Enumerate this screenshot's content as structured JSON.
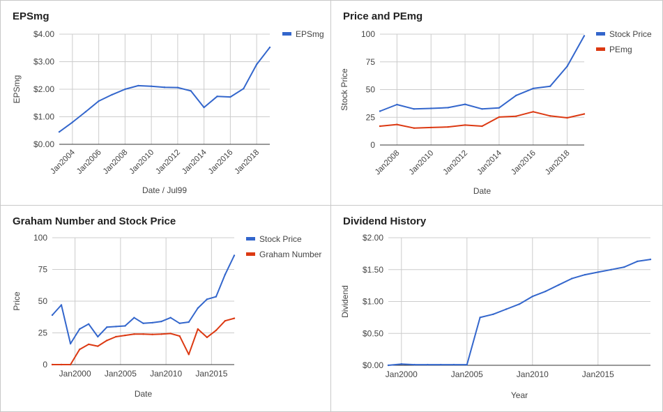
{
  "colors": {
    "blue": "#3366cc",
    "red": "#dc3912",
    "grid": "#cccccc",
    "axis": "#333333",
    "text": "#444444"
  },
  "chart_data": [
    {
      "id": "epsmg",
      "type": "line",
      "title": "EPSmg",
      "xlabel": "Date / Jul99",
      "ylabel": "EPSmg",
      "x_ticks": [
        "Jan2004",
        "Jan2006",
        "Jan2008",
        "Jan2010",
        "Jan2012",
        "Jan2014",
        "Jan2016",
        "Jan2018"
      ],
      "y_ticks": [
        "$0.00",
        "$1.00",
        "$2.00",
        "$3.00",
        "$4.00"
      ],
      "ylim": [
        0,
        4
      ],
      "grid": true,
      "legend": "right",
      "series": [
        {
          "name": "EPSmg",
          "color": "#3366cc",
          "x": [
            2003,
            2004,
            2005,
            2006,
            2007,
            2008,
            2009,
            2010,
            2011,
            2012,
            2013,
            2014,
            2015,
            2016,
            2017,
            2018,
            2019
          ],
          "y": [
            0.45,
            0.8,
            1.18,
            1.57,
            1.8,
            2.0,
            2.13,
            2.11,
            2.07,
            2.06,
            1.94,
            1.34,
            1.74,
            1.72,
            2.02,
            2.9,
            3.52
          ]
        }
      ]
    },
    {
      "id": "price-pemg",
      "type": "line",
      "title": "Price and PEmg",
      "xlabel": "Date",
      "ylabel": "Stock Price",
      "x_ticks": [
        "Jan2008",
        "Jan2010",
        "Jan2012",
        "Jan2014",
        "Jan2016",
        "Jan2018"
      ],
      "y_ticks": [
        "0",
        "25",
        "50",
        "75",
        "100"
      ],
      "ylim": [
        0,
        100
      ],
      "grid": true,
      "legend": "right",
      "series": [
        {
          "name": "Stock Price",
          "color": "#3366cc",
          "x": [
            2007,
            2008,
            2009,
            2010,
            2011,
            2012,
            2013,
            2014,
            2015,
            2016,
            2017,
            2018,
            2019
          ],
          "y": [
            30.5,
            36.5,
            32.5,
            33.0,
            33.7,
            36.7,
            32.5,
            33.5,
            44.7,
            51.0,
            53.0,
            71.0,
            98.5
          ]
        },
        {
          "name": "PEmg",
          "color": "#dc3912",
          "x": [
            2007,
            2008,
            2009,
            2010,
            2011,
            2012,
            2013,
            2014,
            2015,
            2016,
            2017,
            2018,
            2019
          ],
          "y": [
            17.0,
            18.5,
            15.3,
            15.8,
            16.3,
            18.0,
            17.0,
            25.2,
            26.0,
            30.0,
            26.2,
            24.5,
            28.0
          ]
        }
      ]
    },
    {
      "id": "graham",
      "type": "line",
      "title": "Graham Number and Stock Price",
      "xlabel": "Date",
      "ylabel": "Price",
      "x_ticks": [
        "Jan2000",
        "Jan2005",
        "Jan2010",
        "Jan2015"
      ],
      "y_ticks": [
        "0",
        "25",
        "50",
        "75",
        "100"
      ],
      "ylim": [
        0,
        100
      ],
      "grid": true,
      "legend": "right",
      "series": [
        {
          "name": "Stock Price",
          "color": "#3366cc",
          "x": [
            1997.5,
            1998.5,
            1999.5,
            2000.5,
            2001.5,
            2002.5,
            2003.5,
            2004.5,
            2005.5,
            2006.5,
            2007.5,
            2008.5,
            2009.5,
            2010.5,
            2011.5,
            2012.5,
            2013.5,
            2014.5,
            2015.5,
            2016.5,
            2017.5
          ],
          "y": [
            39.0,
            47.0,
            16.5,
            28.0,
            32.0,
            22.0,
            29.5,
            30.0,
            30.5,
            37.0,
            32.5,
            33.0,
            34.0,
            37.0,
            32.5,
            33.5,
            44.5,
            51.5,
            53.5,
            71.0,
            86.0
          ]
        },
        {
          "name": "Graham Number",
          "color": "#dc3912",
          "x": [
            1997.5,
            1998.5,
            1999.5,
            2000.5,
            2001.5,
            2002.5,
            2003.5,
            2004.5,
            2005.5,
            2006.5,
            2007.5,
            2008.5,
            2009.5,
            2010.5,
            2011.5,
            2012.5,
            2013.5,
            2014.5,
            2015.5,
            2016.5,
            2017.5
          ],
          "y": [
            0,
            0,
            0,
            12.0,
            16.0,
            14.5,
            19.0,
            22.0,
            23.0,
            24.0,
            24.0,
            23.8,
            24.0,
            24.5,
            22.5,
            8.0,
            28.0,
            21.5,
            27.0,
            34.5,
            36.5
          ]
        }
      ]
    },
    {
      "id": "dividend",
      "type": "line",
      "title": "Dividend History",
      "xlabel": "Year",
      "ylabel": "Dividend",
      "x_ticks": [
        "Jan2000",
        "Jan2005",
        "Jan2010",
        "Jan2015"
      ],
      "y_ticks": [
        "$0.00",
        "$0.50",
        "$1.00",
        "$1.50",
        "$2.00"
      ],
      "ylim": [
        0,
        2
      ],
      "grid": true,
      "legend": "none",
      "series": [
        {
          "name": "",
          "color": "#3366cc",
          "x": [
            1999,
            2000,
            2001,
            2002,
            2003,
            2004,
            2005,
            2006,
            2007,
            2008,
            2009,
            2010,
            2011,
            2012,
            2013,
            2014,
            2015,
            2016,
            2017,
            2018,
            2019
          ],
          "y": [
            0.0,
            0.02,
            0.01,
            0.01,
            0.01,
            0.01,
            0.01,
            0.75,
            0.8,
            0.88,
            0.96,
            1.08,
            1.16,
            1.26,
            1.36,
            1.42,
            1.46,
            1.5,
            1.54,
            1.63,
            1.66
          ]
        }
      ]
    }
  ]
}
